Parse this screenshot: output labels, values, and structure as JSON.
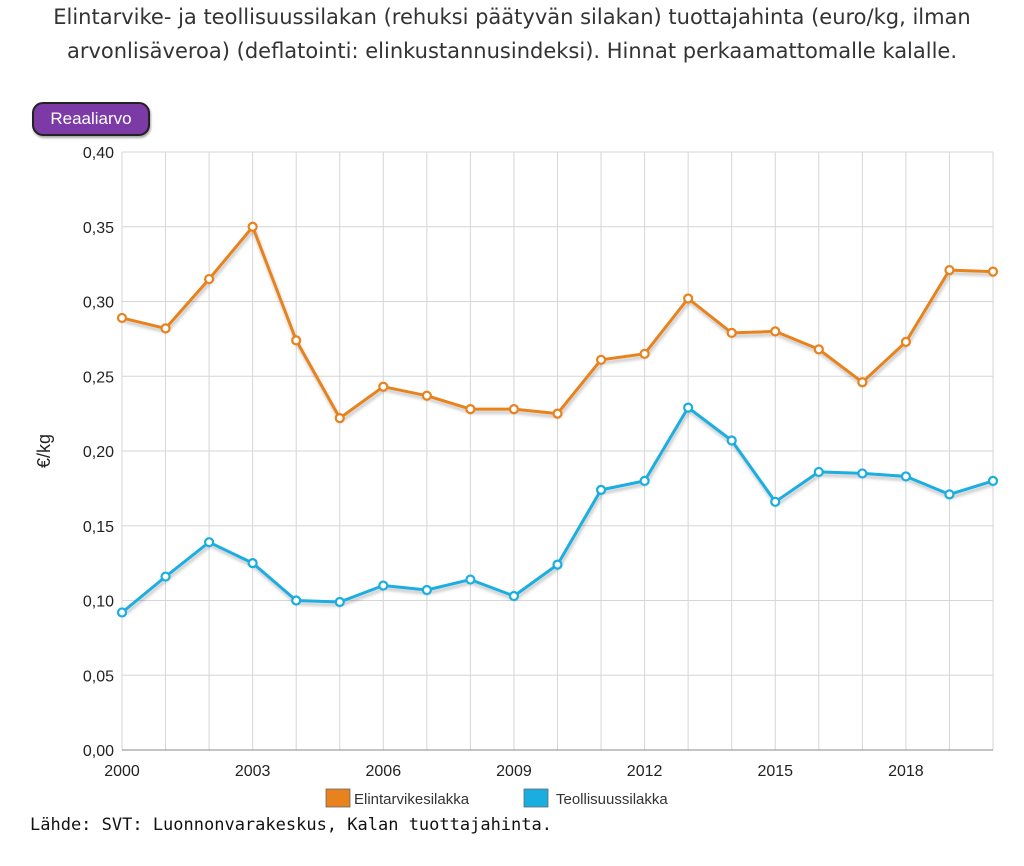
{
  "title": "Elintarvike- ja teollisuussilakan (rehuksi päätyvän silakan) tuottajahinta (euro/kg, ilman arvonlisäveroa) (deflatointi: elinkustannusindeksi). Hinnat perkaamattomalle kalalle.",
  "toggle_label": "Reaaliarvo",
  "source": "Lähde: SVT: Luonnonvarakeskus, Kalan tuottajahinta.",
  "chart_data": {
    "type": "line",
    "ylabel": "€/kg",
    "xlabel": "",
    "ylim": [
      0,
      0.4
    ],
    "xlim": [
      2000,
      2020
    ],
    "y_ticks": [
      "0,00",
      "0,05",
      "0,10",
      "0,15",
      "0,20",
      "0,25",
      "0,30",
      "0,35",
      "0,40"
    ],
    "x_ticks": [
      "2000",
      "2003",
      "2006",
      "2009",
      "2012",
      "2015",
      "2018"
    ],
    "grid": true,
    "legend_position": "bottom",
    "x": [
      2000,
      2001,
      2002,
      2003,
      2004,
      2005,
      2006,
      2007,
      2008,
      2009,
      2010,
      2011,
      2012,
      2013,
      2014,
      2015,
      2016,
      2017,
      2018,
      2019,
      2020
    ],
    "series": [
      {
        "name": "Elintarvikesilakka",
        "color": "#e8821e",
        "values": [
          0.289,
          0.282,
          0.315,
          0.35,
          0.274,
          0.222,
          0.243,
          0.237,
          0.228,
          0.228,
          0.225,
          0.261,
          0.265,
          0.302,
          0.279,
          0.28,
          0.268,
          0.246,
          0.273,
          0.321,
          0.32
        ]
      },
      {
        "name": "Teollisuussilakka",
        "color": "#1aaee0",
        "values": [
          0.092,
          0.116,
          0.139,
          0.125,
          0.1,
          0.099,
          0.11,
          0.107,
          0.114,
          0.103,
          0.124,
          0.174,
          0.18,
          0.229,
          0.207,
          0.166,
          0.186,
          0.185,
          0.183,
          0.171,
          0.18
        ]
      }
    ]
  }
}
